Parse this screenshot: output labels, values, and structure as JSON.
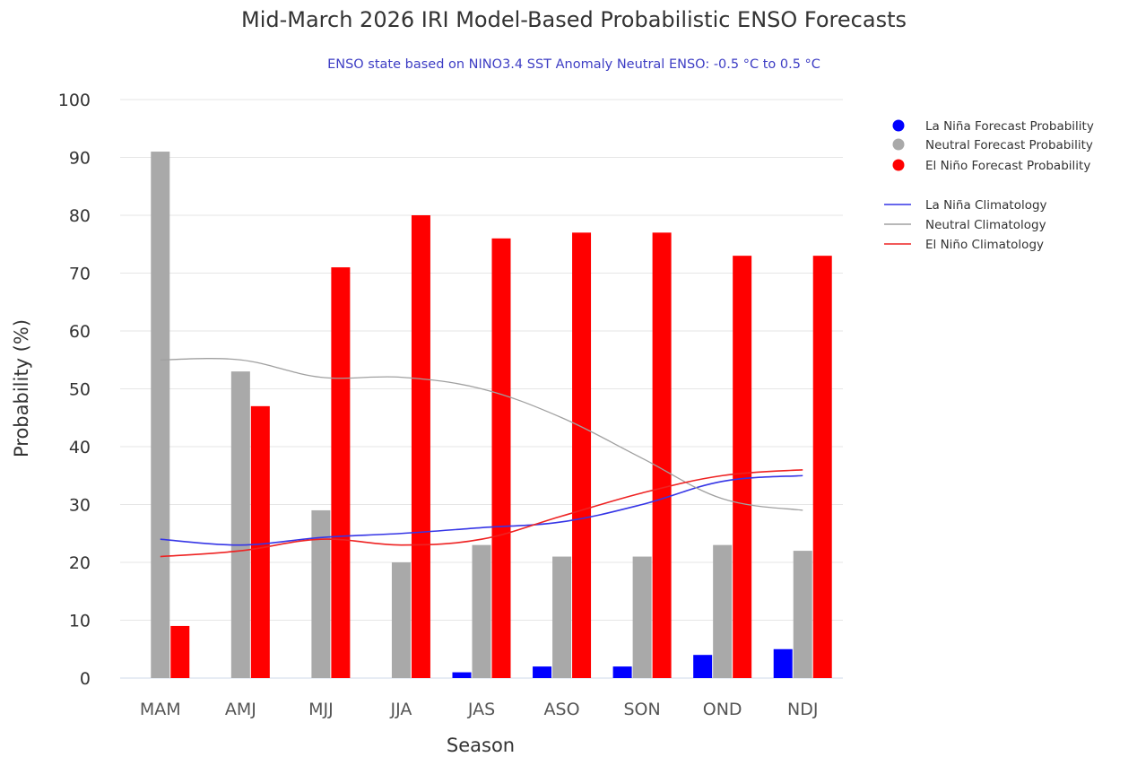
{
  "chart_data": {
    "type": "bar",
    "title": "Mid-March 2026 IRI Model-Based Probabilistic ENSO Forecasts",
    "subtitle": "ENSO state based on NINO3.4 SST Anomaly Neutral ENSO: -0.5 °C to 0.5 °C",
    "xlabel": "Season",
    "ylabel": "Probability (%)",
    "ylim": [
      0,
      100
    ],
    "yticks": [
      0,
      10,
      20,
      30,
      40,
      50,
      60,
      70,
      80,
      90,
      100
    ],
    "grid": true,
    "legend_position": "right",
    "categories": [
      "MAM",
      "AMJ",
      "MJJ",
      "JJA",
      "JAS",
      "ASO",
      "SON",
      "OND",
      "NDJ"
    ],
    "series": [
      {
        "name": "La Niña Forecast Probability",
        "kind": "bar",
        "color": "#0000ff",
        "values": [
          0,
          0,
          0,
          0,
          1,
          2,
          2,
          4,
          5
        ]
      },
      {
        "name": "Neutral Forecast Probability",
        "kind": "bar",
        "color": "#a9a9a9",
        "values": [
          91,
          53,
          29,
          20,
          23,
          21,
          21,
          23,
          22
        ]
      },
      {
        "name": "El Niño Forecast Probability",
        "kind": "bar",
        "color": "#ff0000",
        "values": [
          9,
          47,
          71,
          80,
          76,
          77,
          77,
          73,
          73
        ]
      },
      {
        "name": "La Niña Climatology",
        "kind": "line",
        "color": "#3535e6",
        "values": [
          24,
          23,
          24.3,
          25,
          26,
          27,
          30,
          34,
          35
        ]
      },
      {
        "name": "Neutral Climatology",
        "kind": "line",
        "color": "#a0a0a0",
        "values": [
          55,
          55,
          52,
          52,
          50,
          45,
          38,
          31,
          29
        ]
      },
      {
        "name": "El Niño Climatology",
        "kind": "line",
        "color": "#ee2222",
        "values": [
          21,
          22,
          24,
          23,
          24,
          28,
          32,
          35,
          36
        ]
      }
    ]
  }
}
